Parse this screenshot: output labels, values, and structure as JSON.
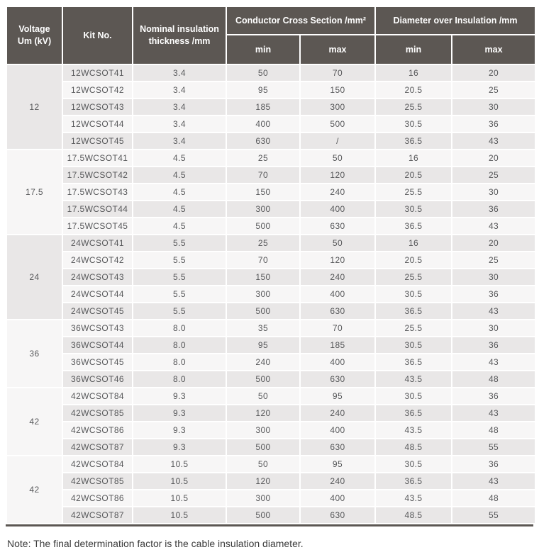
{
  "table": {
    "headers": {
      "voltage_line1": "Voltage",
      "voltage_line2": "Um (kV)",
      "kit_no": "Kit No.",
      "thickness": "Nominal insulation thickness /mm",
      "conductor_group": "Conductor Cross Section /mm²",
      "diameter_group": "Diameter over Insulation /mm",
      "min": "min",
      "max": "max"
    },
    "groups": [
      {
        "voltage": "12",
        "rows": [
          [
            "12WCSOT41",
            "3.4",
            "50",
            "70",
            "16",
            "20"
          ],
          [
            "12WCSOT42",
            "3.4",
            "95",
            "150",
            "20.5",
            "25"
          ],
          [
            "12WCSOT43",
            "3.4",
            "185",
            "300",
            "25.5",
            "30"
          ],
          [
            "12WCSOT44",
            "3.4",
            "400",
            "500",
            "30.5",
            "36"
          ],
          [
            "12WCSOT45",
            "3.4",
            "630",
            "/",
            "36.5",
            "43"
          ]
        ]
      },
      {
        "voltage": "17.5",
        "rows": [
          [
            "17.5WCSOT41",
            "4.5",
            "25",
            "50",
            "16",
            "20"
          ],
          [
            "17.5WCSOT42",
            "4.5",
            "70",
            "120",
            "20.5",
            "25"
          ],
          [
            "17.5WCSOT43",
            "4.5",
            "150",
            "240",
            "25.5",
            "30"
          ],
          [
            "17.5WCSOT44",
            "4.5",
            "300",
            "400",
            "30.5",
            "36"
          ],
          [
            "17.5WCSOT45",
            "4.5",
            "500",
            "630",
            "36.5",
            "43"
          ]
        ]
      },
      {
        "voltage": "24",
        "rows": [
          [
            "24WCSOT41",
            "5.5",
            "25",
            "50",
            "16",
            "20"
          ],
          [
            "24WCSOT42",
            "5.5",
            "70",
            "120",
            "20.5",
            "25"
          ],
          [
            "24WCSOT43",
            "5.5",
            "150",
            "240",
            "25.5",
            "30"
          ],
          [
            "24WCSOT44",
            "5.5",
            "300",
            "400",
            "30.5",
            "36"
          ],
          [
            "24WCSOT45",
            "5.5",
            "500",
            "630",
            "36.5",
            "43"
          ]
        ]
      },
      {
        "voltage": "36",
        "rows": [
          [
            "36WCSOT43",
            "8.0",
            "35",
            "70",
            "25.5",
            "30"
          ],
          [
            "36WCSOT44",
            "8.0",
            "95",
            "185",
            "30.5",
            "36"
          ],
          [
            "36WCSOT45",
            "8.0",
            "240",
            "400",
            "36.5",
            "43"
          ],
          [
            "36WCSOT46",
            "8.0",
            "500",
            "630",
            "43.5",
            "48"
          ]
        ]
      },
      {
        "voltage": "42",
        "rows": [
          [
            "42WCSOT84",
            "9.3",
            "50",
            "95",
            "30.5",
            "36"
          ],
          [
            "42WCSOT85",
            "9.3",
            "120",
            "240",
            "36.5",
            "43"
          ],
          [
            "42WCSOT86",
            "9.3",
            "300",
            "400",
            "43.5",
            "48"
          ],
          [
            "42WCSOT87",
            "9.3",
            "500",
            "630",
            "48.5",
            "55"
          ]
        ]
      },
      {
        "voltage": "42",
        "rows": [
          [
            "42WCSOT84",
            "10.5",
            "50",
            "95",
            "30.5",
            "36"
          ],
          [
            "42WCSOT85",
            "10.5",
            "120",
            "240",
            "36.5",
            "43"
          ],
          [
            "42WCSOT86",
            "10.5",
            "300",
            "400",
            "43.5",
            "48"
          ],
          [
            "42WCSOT87",
            "10.5",
            "500",
            "630",
            "48.5",
            "55"
          ]
        ]
      }
    ]
  },
  "note": "Note: The final determination factor is the cable insulation diameter.",
  "colors": {
    "header_bg": "#5c5753",
    "header_text": "#ffffff",
    "row_dark": "#e9e7e7",
    "row_light": "#f7f6f6",
    "body_text": "#58595b",
    "note_text": "#3c3c3c",
    "rule": "#5c5753"
  }
}
